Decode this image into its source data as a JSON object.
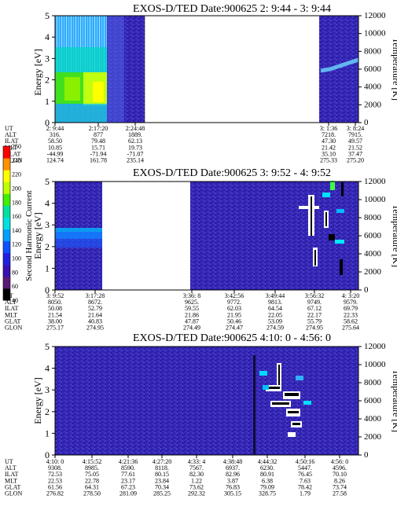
{
  "chart_data": [
    {
      "type": "heatmap",
      "title": "EXOS-D/TED   Date:900625  2: 9:44 - 3: 9:44",
      "ylabel": "Energy [eV]",
      "ylabel_right": "Temperature [K]",
      "ylim": [
        0,
        5
      ],
      "ylim_right": [
        0,
        12000
      ],
      "yticks": [
        "0",
        "1",
        "2",
        "3",
        "4",
        "5"
      ],
      "yticks_right": [
        "0",
        "2000",
        "4000",
        "6000",
        "8000",
        "10000",
        "12000"
      ],
      "data_gap": [
        "2:24:48",
        "3:1:36"
      ],
      "row_labels": [
        "UT",
        "ALT",
        "ILAT",
        "MLT",
        "GLAT",
        "GLON"
      ],
      "columns": [
        {
          "time": "2: 9:44",
          "values": [
            "316.",
            "58.50",
            "10.85",
            "-44.99",
            "124.74"
          ]
        },
        {
          "time": "2:17:20",
          "values": [
            "877",
            "79.48",
            "15.71",
            "-71.94",
            "161.78"
          ]
        },
        {
          "time": "2:24:48",
          "values": [
            "1889.",
            "62.13",
            "19.73",
            "-71.07",
            "235.14"
          ]
        },
        {
          "time": "3: 1:36",
          "values": [
            "7218.",
            "47.30",
            "21.42",
            "35.10",
            "275.33"
          ]
        },
        {
          "time": "3: 8:24",
          "values": [
            "7915.",
            "49.57",
            "21.52",
            "37.47",
            "275.20"
          ]
        }
      ]
    },
    {
      "type": "heatmap",
      "title": "EXOS-D/TED   Date:900625  3: 9:52 - 4: 9:52",
      "ylabel": "Energy [eV]",
      "ylabel_right": "Temperature [K]",
      "ylim": [
        0,
        5
      ],
      "ylim_right": [
        0,
        12000
      ],
      "yticks": [
        "0",
        "1",
        "2",
        "3",
        "4",
        "5"
      ],
      "yticks_right": [
        "0",
        "2000",
        "4000",
        "6000",
        "8000",
        "10000",
        "12000"
      ],
      "data_gap": [
        "3:17:28",
        "3:36: 8"
      ],
      "row_labels": [
        "UT",
        "ALT",
        "ILAT",
        "MLT",
        "GLAT",
        "GLON"
      ],
      "columns": [
        {
          "time": "3: 9:52",
          "values": [
            "8050.",
            "50.08",
            "21.54",
            "38.00",
            "275.17"
          ]
        },
        {
          "time": "3:17:28",
          "values": [
            "8672.",
            "52.79",
            "21.64",
            "40.83",
            "274.95"
          ]
        },
        {
          "time": "3:36: 8",
          "values": [
            "9625.",
            "59.55",
            "21.86",
            "47.87",
            "274.49"
          ]
        },
        {
          "time": "3:42:56",
          "values": [
            "9772.",
            "62.03",
            "21.95",
            "50.46",
            "274.47"
          ]
        },
        {
          "time": "3:49:44",
          "values": [
            "9813.",
            "64.54",
            "22.05",
            "53.09",
            "274.59"
          ]
        },
        {
          "time": "3:56:32",
          "values": [
            "9749.",
            "67.12",
            "22.17",
            "55.79",
            "274.95"
          ]
        },
        {
          "time": "4: 3:20",
          "values": [
            "9579.",
            "69.79",
            "22.33",
            "58.62",
            "275.64"
          ]
        }
      ]
    },
    {
      "type": "heatmap",
      "title": "EXOS-D/TED   Date:900625  4:10: 0 - 4:56: 0",
      "ylabel": "Energy [eV]",
      "ylabel_right": "Temperature [K]",
      "ylim": [
        0,
        5
      ],
      "ylim_right": [
        0,
        12000
      ],
      "yticks": [
        "0",
        "1",
        "2",
        "3",
        "4",
        "5"
      ],
      "yticks_right": [
        "0",
        "2000",
        "4000",
        "6000",
        "8000",
        "10000",
        "12000"
      ],
      "row_labels": [
        "UT",
        "ALT",
        "ILAT",
        "MLT",
        "GLAT",
        "GLON"
      ],
      "columns": [
        {
          "time": "4:10: 0",
          "values": [
            "9308.",
            "72.53",
            "22.53",
            "61.56",
            "276.82"
          ]
        },
        {
          "time": "4:15:52",
          "values": [
            "8985.",
            "75.05",
            "22.78",
            "64.31",
            "278.50"
          ]
        },
        {
          "time": "4:21:36",
          "values": [
            "8590.",
            "77.61",
            "23.17",
            "67.23",
            "281.09"
          ]
        },
        {
          "time": "4:27:20",
          "values": [
            "8118.",
            "80.15",
            "23.84",
            "70.34",
            "285.25"
          ]
        },
        {
          "time": "4:33: 4",
          "values": [
            "7567.",
            "82.30",
            "1.22",
            "73.62",
            "292.32"
          ]
        },
        {
          "time": "4:38:48",
          "values": [
            "6937.",
            "82.96",
            "3.87",
            "76.83",
            "305.15"
          ]
        },
        {
          "time": "4:44:32",
          "values": [
            "6230.",
            "80.91",
            "6.38",
            "79.09",
            "328.75"
          ]
        },
        {
          "time": "4:50:16",
          "values": [
            "5447.",
            "76.45",
            "7.63",
            "78.42",
            "1.79"
          ]
        },
        {
          "time": "4:56: 0",
          "values": [
            "4596.",
            "70.10",
            "8.26",
            "73.74",
            "27.58"
          ]
        }
      ]
    }
  ],
  "colorbar": {
    "label": "Second Harmonic Current",
    "ticks": [
      "40",
      "60",
      "80",
      "100",
      "120",
      "140",
      "160",
      "180",
      "200",
      "220",
      "240",
      "250"
    ],
    "colors": [
      "#000000",
      "#5a1a78",
      "#3a10b0",
      "#2020e0",
      "#1050ff",
      "#00a0ff",
      "#00e0e0",
      "#00e0a0",
      "#40f000",
      "#c0ff00",
      "#ffff00",
      "#ff9000",
      "#ff0000"
    ]
  }
}
